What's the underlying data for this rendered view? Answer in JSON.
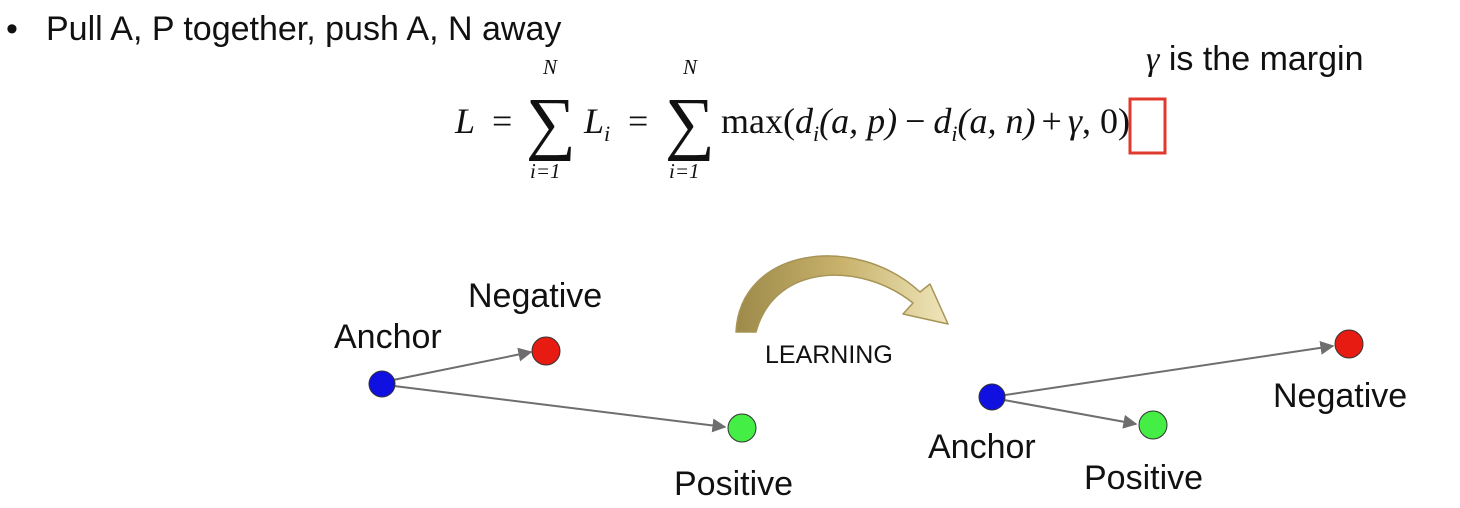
{
  "slide": {
    "bullet_char": "•",
    "bullet_text": "Pull A, P together, push A, N away",
    "margin_note": {
      "symbol": "γ",
      "text": " is the margin"
    }
  },
  "formula": {
    "lhs": "L",
    "eq": "=",
    "sum_upper": "N",
    "sum_lower": "i=1",
    "sum_sign": "∑",
    "term_base": "L",
    "term_sub": "i",
    "max_open": "max(",
    "d": "d",
    "d_sub": "i",
    "ap": "(a, p)",
    "minus": "−",
    "an": "(a, n)",
    "plus": "+",
    "gamma": "γ",
    "tail": ", 0)"
  },
  "diagram": {
    "learning_label": "LEARNING",
    "before": {
      "anchor": "Anchor",
      "negative": "Negative",
      "positive": "Positive"
    },
    "after": {
      "anchor": "Anchor",
      "negative": "Negative",
      "positive": "Positive"
    },
    "colors": {
      "anchor": "#1010e0",
      "negative": "#e81b12",
      "positive": "#44ee44",
      "arrow": "#6e6e6e",
      "highlight_box": "#e03a2f",
      "curved_arrow": "#cbb56e"
    }
  }
}
